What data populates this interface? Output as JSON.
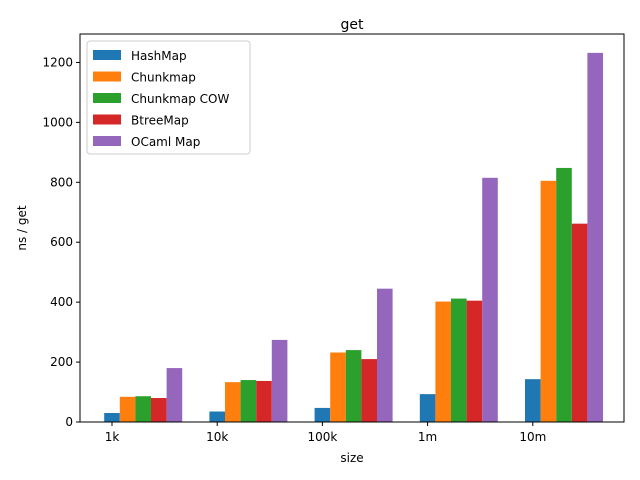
{
  "chart_data": {
    "type": "bar",
    "title": "get",
    "xlabel": "size",
    "ylabel": "ns / get",
    "categories": [
      "1k",
      "10k",
      "100k",
      "1m",
      "10m"
    ],
    "series": [
      {
        "name": "HashMap",
        "color": "#1f77b4",
        "values": [
          30,
          35,
          47,
          93,
          143
        ]
      },
      {
        "name": "Chunkmap",
        "color": "#ff7f0e",
        "values": [
          84,
          133,
          232,
          402,
          805
        ]
      },
      {
        "name": "Chunkmap COW",
        "color": "#2ca02c",
        "values": [
          86,
          140,
          240,
          412,
          848
        ]
      },
      {
        "name": "BtreeMap",
        "color": "#d62728",
        "values": [
          80,
          137,
          210,
          405,
          662
        ]
      },
      {
        "name": "OCaml Map",
        "color": "#9467bd",
        "values": [
          180,
          274,
          445,
          815,
          1232
        ]
      }
    ],
    "ylim": [
      0,
      1295
    ],
    "yticks": [
      0,
      200,
      400,
      600,
      800,
      1000,
      1200
    ],
    "legend_position": "top-left",
    "grid": false
  }
}
